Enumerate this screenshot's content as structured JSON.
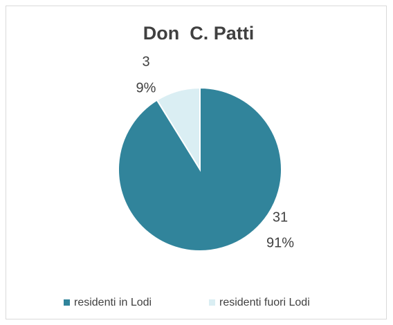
{
  "chart_data": {
    "type": "pie",
    "title": "Don  C. Patti",
    "categories": [
      "residenti in Lodi",
      "residenti fuori Lodi"
    ],
    "values": [
      31,
      3
    ],
    "percent_labels": [
      "91%",
      "9%"
    ],
    "colors": [
      "#31849b",
      "#daeef3"
    ],
    "legend": "bottom"
  }
}
